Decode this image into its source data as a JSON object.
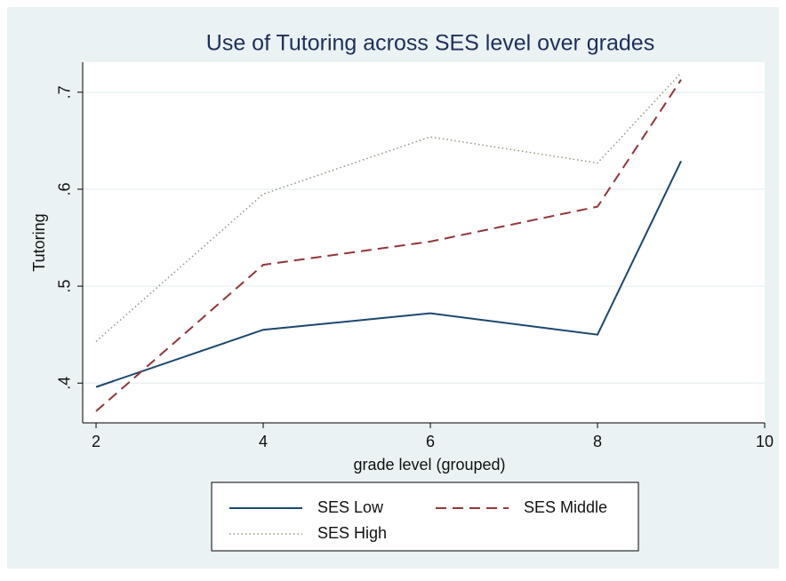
{
  "chart_data": {
    "type": "line",
    "title": "Use of Tutoring across SES level over grades",
    "xlabel": "grade level (grouped)",
    "ylabel": "Tutoring",
    "x": [
      2,
      4,
      6,
      8,
      9
    ],
    "series": [
      {
        "name": "SES Low",
        "color": "#1a476f",
        "dash": "solid",
        "values": [
          0.396,
          0.455,
          0.472,
          0.45,
          0.629
        ]
      },
      {
        "name": "SES Middle",
        "color": "#90353b",
        "dash": "dashed",
        "values": [
          0.371,
          0.522,
          0.546,
          0.582,
          0.713
        ]
      },
      {
        "name": "SES High",
        "color": "#8a9a80",
        "dash": "dotted",
        "values": [
          0.443,
          0.595,
          0.654,
          0.627,
          0.72
        ]
      }
    ],
    "xlim": [
      1.84,
      10
    ],
    "xticks": [
      2,
      4,
      6,
      8,
      10
    ],
    "ylim": [
      0.359,
      0.731
    ],
    "yticks": [
      {
        "value": 0.4,
        "label": ".4"
      },
      {
        "value": 0.5,
        "label": ".5"
      },
      {
        "value": 0.6,
        "label": ".6"
      },
      {
        "value": 0.7,
        "label": ".7"
      }
    ],
    "grid": true,
    "legend": "bottom"
  }
}
